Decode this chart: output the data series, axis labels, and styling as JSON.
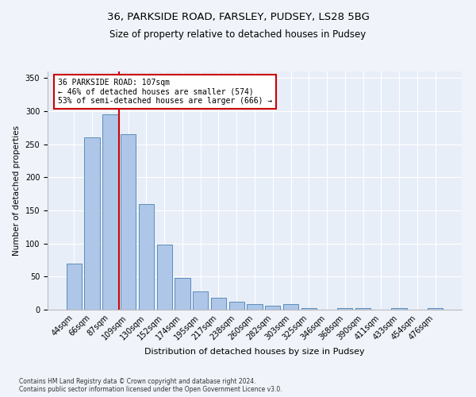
{
  "title_line1": "36, PARKSIDE ROAD, FARSLEY, PUDSEY, LS28 5BG",
  "title_line2": "Size of property relative to detached houses in Pudsey",
  "xlabel": "Distribution of detached houses by size in Pudsey",
  "ylabel": "Number of detached properties",
  "footnote": "Contains HM Land Registry data © Crown copyright and database right 2024.\nContains public sector information licensed under the Open Government Licence v3.0.",
  "categories": [
    "44sqm",
    "66sqm",
    "87sqm",
    "109sqm",
    "130sqm",
    "152sqm",
    "174sqm",
    "195sqm",
    "217sqm",
    "238sqm",
    "260sqm",
    "282sqm",
    "303sqm",
    "325sqm",
    "346sqm",
    "368sqm",
    "390sqm",
    "411sqm",
    "433sqm",
    "454sqm",
    "476sqm"
  ],
  "values": [
    70,
    260,
    295,
    265,
    160,
    98,
    48,
    28,
    18,
    12,
    8,
    6,
    8,
    3,
    0,
    3,
    3,
    0,
    3,
    0,
    3
  ],
  "bar_color": "#aec6e8",
  "bar_edge_color": "#5b8db8",
  "vline_color": "#cc0000",
  "vline_x_index": 2.5,
  "annotation_text": "36 PARKSIDE ROAD: 107sqm\n← 46% of detached houses are smaller (574)\n53% of semi-detached houses are larger (666) →",
  "annotation_box_color": "#ffffff",
  "annotation_box_edge": "#cc0000",
  "ylim": [
    0,
    360
  ],
  "yticks": [
    0,
    50,
    100,
    150,
    200,
    250,
    300,
    350
  ],
  "background_color": "#f0f4fa",
  "plot_background": "#e8eef8",
  "title_fontsize": 9.5,
  "subtitle_fontsize": 8.5,
  "ylabel_fontsize": 7.5,
  "xlabel_fontsize": 8,
  "tick_fontsize": 7,
  "annot_fontsize": 7,
  "footnote_fontsize": 5.5
}
